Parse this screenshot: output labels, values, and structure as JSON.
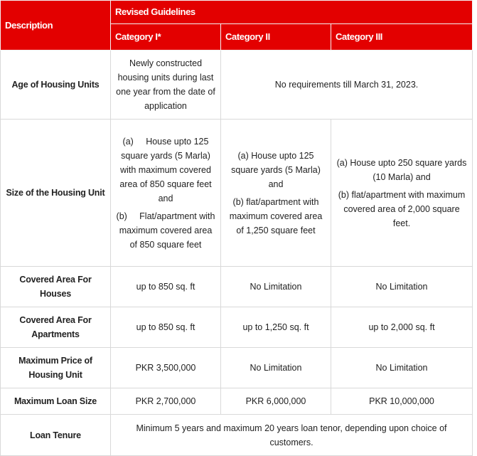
{
  "header": {
    "description": "Description",
    "group": "Revised Guidelines",
    "categories": [
      "Category I*",
      "Category II",
      "Category III"
    ]
  },
  "rows": {
    "age": {
      "label": "Age of Housing Units",
      "cat1": "Newly constructed housing units during last one year from the date of application",
      "rest": "No requirements till March 31, 2023."
    },
    "size": {
      "label": "Size of the Housing Unit",
      "cat1": [
        "(a)     House upto 125 square yards (5 Marla) with maximum covered area of 850 square feet and",
        "(b)     Flat/apartment with maximum covered area of 850 square feet"
      ],
      "cat2": [
        "(a) House upto 125 square yards (5 Marla) and",
        "(b) flat/apartment with maximum covered area of 1,250 square feet"
      ],
      "cat3": [
        "(a) House upto 250 square yards (10 Marla) and",
        "(b) flat/apartment with maximum covered area of 2,000 square feet."
      ]
    },
    "houses": {
      "label": "Covered Area For Houses",
      "values": [
        "up to 850 sq. ft",
        "No Limitation",
        "No Limitation"
      ]
    },
    "apartments": {
      "label": "Covered Area For Apartments",
      "values": [
        "up to 850 sq. ft",
        "up to 1,250 sq. ft",
        "up to 2,000 sq. ft"
      ]
    },
    "price": {
      "label": "Maximum Price of Housing Unit",
      "values": [
        "PKR 3,500,000",
        "No Limitation",
        "No Limitation"
      ]
    },
    "loan": {
      "label": "Maximum Loan Size",
      "values": [
        "PKR 2,700,000",
        "PKR 6,000,000",
        "PKR 10,000,000"
      ]
    },
    "tenure": {
      "label": "Loan Tenure",
      "value": "Minimum 5 years and maximum 20 years loan tenor, depending upon choice of customers."
    }
  },
  "colors": {
    "header": "#e30000",
    "border": "#d9d9d9"
  }
}
